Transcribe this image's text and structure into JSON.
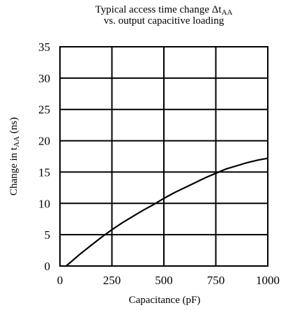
{
  "chart_data": {
    "type": "line",
    "title_line1_main": "Typical access time change Δt",
    "title_line1_sub": "AA",
    "title_line2": "vs. output capacitive loading",
    "xlabel": "Capacitance (pF)",
    "ylabel_main": "Change in t",
    "ylabel_sub": "AA",
    "ylabel_unit": " (ns)",
    "xlim": [
      0,
      1000
    ],
    "ylim": [
      0,
      35
    ],
    "x_ticks": [
      0,
      250,
      500,
      750,
      1000
    ],
    "y_ticks": [
      0,
      5,
      10,
      15,
      20,
      25,
      30,
      35
    ],
    "grid": true,
    "series": [
      {
        "x": [
          30,
          100,
          150,
          200,
          250,
          300,
          350,
          400,
          450,
          500,
          550,
          600,
          650,
          700,
          750,
          800,
          850,
          900,
          950,
          1000
        ],
        "y": [
          0,
          2.0,
          3.3,
          4.6,
          5.8,
          6.9,
          7.9,
          8.9,
          9.8,
          10.8,
          11.7,
          12.5,
          13.3,
          14.1,
          14.8,
          15.5,
          16.0,
          16.5,
          16.9,
          17.2
        ]
      }
    ]
  }
}
